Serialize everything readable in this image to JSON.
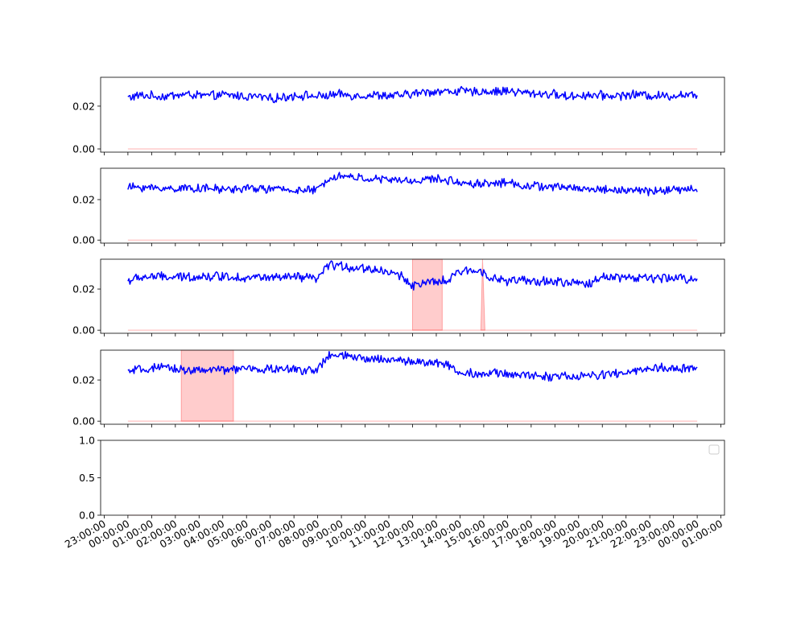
{
  "chart_data": {
    "type": "line",
    "x_axis": {
      "tick_labels": [
        "23:00:00",
        "00:00:00",
        "01:00:00",
        "02:00:00",
        "03:00:00",
        "04:00:00",
        "05:00:00",
        "06:00:00",
        "07:00:00",
        "08:00:00",
        "09:00:00",
        "10:00:00",
        "11:00:00",
        "12:00:00",
        "13:00:00",
        "14:00:00",
        "15:00:00",
        "16:00:00",
        "17:00:00",
        "18:00:00",
        "19:00:00",
        "20:00:00",
        "21:00:00",
        "22:00:00",
        "23:00:00",
        "00:00:00",
        "01:00:00"
      ],
      "range_hours": [
        -1.15,
        25.15
      ],
      "data_start_hour": 0.0,
      "data_end_hour": 24.0
    },
    "colors": {
      "line": "#0000ff",
      "shade": "#ff0000",
      "shade_opacity": 0.2
    },
    "panels": [
      {
        "ylim": [
          -0.0015,
          0.0335
        ],
        "yticks": [
          "0.00",
          "0.02"
        ],
        "ytick_values": [
          0.0,
          0.02
        ],
        "line": {
          "hours": [
            0,
            0.5,
            1,
            1.5,
            2,
            2.5,
            3,
            3.5,
            4,
            4.5,
            5,
            5.5,
            6,
            6.5,
            7,
            7.5,
            8,
            8.5,
            9,
            9.5,
            10,
            10.5,
            11,
            11.5,
            12,
            12.5,
            13,
            13.5,
            14,
            14.5,
            15,
            15.5,
            16,
            16.5,
            17,
            17.5,
            18,
            18.5,
            19,
            19.5,
            20,
            20.5,
            21,
            21.5,
            22,
            22.5,
            23,
            23.5,
            24
          ],
          "values": [
            0.024,
            0.025,
            0.0248,
            0.0245,
            0.0252,
            0.0255,
            0.025,
            0.0248,
            0.0252,
            0.025,
            0.0245,
            0.0245,
            0.0235,
            0.024,
            0.025,
            0.025,
            0.0245,
            0.025,
            0.0255,
            0.025,
            0.025,
            0.0252,
            0.0248,
            0.025,
            0.0258,
            0.0265,
            0.027,
            0.0268,
            0.0272,
            0.0265,
            0.027,
            0.0268,
            0.0272,
            0.0265,
            0.026,
            0.0258,
            0.0255,
            0.0245,
            0.025,
            0.0252,
            0.025,
            0.0248,
            0.0252,
            0.0255,
            0.025,
            0.0248,
            0.025,
            0.0255,
            0.0245
          ],
          "noise": 0.0022
        },
        "shaded": []
      },
      {
        "ylim": [
          -0.0015,
          0.0355
        ],
        "yticks": [
          "0.00",
          "0.02"
        ],
        "ytick_values": [
          0.0,
          0.02
        ],
        "line": {
          "hours": [
            0,
            0.5,
            1,
            1.5,
            2,
            2.5,
            3,
            3.5,
            4,
            4.5,
            5,
            5.5,
            6,
            6.5,
            7,
            7.5,
            8,
            8.5,
            9,
            9.5,
            10,
            10.5,
            11,
            11.5,
            12,
            12.5,
            13,
            13.5,
            14,
            14.5,
            15,
            15.5,
            16,
            16.5,
            17,
            17.5,
            18,
            18.5,
            19,
            19.5,
            20,
            20.5,
            21,
            21.5,
            22,
            22.5,
            23,
            23.5,
            24
          ],
          "values": [
            0.026,
            0.0262,
            0.0258,
            0.0255,
            0.0255,
            0.0258,
            0.0256,
            0.0254,
            0.025,
            0.0252,
            0.0255,
            0.0255,
            0.0252,
            0.025,
            0.0248,
            0.0245,
            0.0248,
            0.031,
            0.0318,
            0.031,
            0.0305,
            0.03,
            0.0298,
            0.0295,
            0.029,
            0.03,
            0.0302,
            0.0295,
            0.0285,
            0.028,
            0.028,
            0.0282,
            0.0285,
            0.0272,
            0.0268,
            0.0265,
            0.026,
            0.0262,
            0.0255,
            0.0252,
            0.025,
            0.0248,
            0.0245,
            0.0245,
            0.0242,
            0.0245,
            0.0248,
            0.025,
            0.0252
          ],
          "noise": 0.0022
        },
        "shaded": []
      },
      {
        "ylim": [
          -0.0015,
          0.0345
        ],
        "yticks": [
          "0.00",
          "0.02"
        ],
        "ytick_values": [
          0.0,
          0.02
        ],
        "line": {
          "hours": [
            0,
            0.5,
            1,
            1.5,
            2,
            2.5,
            3,
            3.5,
            4,
            4.5,
            5,
            5.5,
            6,
            6.5,
            7,
            7.5,
            8,
            8.5,
            9,
            9.5,
            10,
            10.5,
            11,
            11.5,
            12,
            12.5,
            13,
            13.5,
            14,
            14.5,
            15,
            15.5,
            16,
            16.5,
            17,
            17.5,
            18,
            18.5,
            19,
            19.5,
            20,
            20.5,
            21,
            21.5,
            22,
            22.5,
            23,
            23.5,
            24
          ],
          "values": [
            0.024,
            0.0255,
            0.0262,
            0.0258,
            0.0255,
            0.026,
            0.0262,
            0.026,
            0.0265,
            0.0258,
            0.0255,
            0.0258,
            0.0255,
            0.0252,
            0.026,
            0.0252,
            0.025,
            0.032,
            0.031,
            0.0305,
            0.03,
            0.0295,
            0.028,
            0.0265,
            0.022,
            0.0225,
            0.0235,
            0.024,
            0.0285,
            0.029,
            0.0285,
            0.0245,
            0.024,
            0.0242,
            0.0235,
            0.0238,
            0.0235,
            0.023,
            0.0228,
            0.0225,
            0.0262,
            0.0262,
            0.0255,
            0.0255,
            0.0252,
            0.025,
            0.0255,
            0.025,
            0.0248
          ],
          "noise": 0.0024
        },
        "shaded": [
          {
            "shape": "rect",
            "start_hour": 12.0,
            "end_hour": 13.25,
            "top": 0.0345
          },
          {
            "shape": "spike",
            "start_hour": 14.88,
            "peak_hour": 14.95,
            "end_hour": 15.05,
            "top": 0.0345
          }
        ]
      },
      {
        "ylim": [
          -0.0015,
          0.0345
        ],
        "yticks": [
          "0.00",
          "0.02"
        ],
        "ytick_values": [
          0.0,
          0.02
        ],
        "line": {
          "hours": [
            0,
            0.5,
            1,
            1.5,
            2,
            2.5,
            3,
            3.5,
            4,
            4.5,
            5,
            5.5,
            6,
            6.5,
            7,
            7.5,
            8,
            8.5,
            9,
            9.5,
            10,
            10.5,
            11,
            11.5,
            12,
            12.5,
            13,
            13.5,
            14,
            14.5,
            15,
            15.5,
            16,
            16.5,
            17,
            17.5,
            18,
            18.5,
            19,
            19.5,
            20,
            20.5,
            21,
            21.5,
            22,
            22.5,
            23,
            23.5,
            24
          ],
          "values": [
            0.024,
            0.025,
            0.0255,
            0.0258,
            0.0255,
            0.025,
            0.0245,
            0.025,
            0.0248,
            0.0252,
            0.0255,
            0.025,
            0.0255,
            0.0252,
            0.025,
            0.025,
            0.025,
            0.032,
            0.0318,
            0.031,
            0.03,
            0.0305,
            0.03,
            0.0295,
            0.029,
            0.0285,
            0.028,
            0.0278,
            0.0232,
            0.0235,
            0.023,
            0.0232,
            0.023,
            0.0225,
            0.0222,
            0.022,
            0.0218,
            0.0215,
            0.0218,
            0.022,
            0.0225,
            0.023,
            0.0235,
            0.0245,
            0.0255,
            0.0258,
            0.0255,
            0.0255,
            0.0258
          ],
          "noise": 0.0023
        },
        "shaded": [
          {
            "shape": "rect",
            "start_hour": 2.25,
            "end_hour": 4.45,
            "top": 0.0345
          }
        ]
      },
      {
        "ylim": [
          0.0,
          1.0
        ],
        "yticks": [
          "0.0",
          "0.5",
          "1.0"
        ],
        "ytick_values": [
          0.0,
          0.5,
          1.0
        ],
        "legend": {
          "placement": "upper-right",
          "entries": []
        },
        "line": null,
        "shaded": []
      }
    ]
  }
}
